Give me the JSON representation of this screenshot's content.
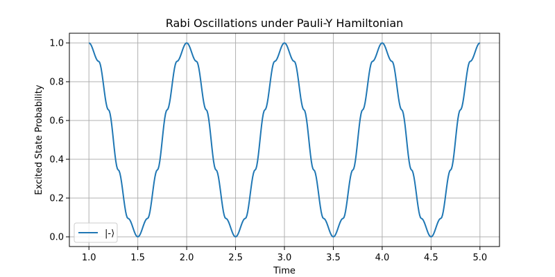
{
  "chart_data": {
    "type": "line",
    "title": "Rabi Oscillations under Pauli-Y Hamiltonian",
    "xlabel": "Time",
    "ylabel": "Excited State Probability",
    "xlim": [
      0.8,
      5.2
    ],
    "ylim": [
      -0.05,
      1.05
    ],
    "xticks": [
      "1.0",
      "1.5",
      "2.0",
      "2.5",
      "3.0",
      "3.5",
      "4.0",
      "4.5",
      "5.0"
    ],
    "yticks": [
      "0.0",
      "0.2",
      "0.4",
      "0.6",
      "0.8",
      "1.0"
    ],
    "grid": true,
    "legend_position": "lower-left",
    "series": [
      {
        "name": "|-⟩",
        "color": "#1f77b4",
        "x": [
          1.0,
          1.1,
          1.2,
          1.3,
          1.4,
          1.5,
          1.6,
          1.7,
          1.8,
          1.9,
          2.0,
          2.1,
          2.2,
          2.3,
          2.4,
          2.5,
          2.6,
          2.7,
          2.8,
          2.9,
          3.0,
          3.1,
          3.2,
          3.3,
          3.4,
          3.5,
          3.6,
          3.7,
          3.8,
          3.9,
          4.0,
          4.1,
          4.2,
          4.3,
          4.4,
          4.5,
          4.6,
          4.7,
          4.8,
          4.9,
          5.0
        ],
        "y": [
          1.0,
          0.905,
          0.655,
          0.345,
          0.095,
          0.0,
          0.095,
          0.345,
          0.655,
          0.905,
          1.0,
          0.905,
          0.655,
          0.345,
          0.095,
          0.0,
          0.095,
          0.345,
          0.655,
          0.905,
          1.0,
          0.905,
          0.655,
          0.345,
          0.095,
          0.0,
          0.095,
          0.345,
          0.655,
          0.905,
          1.0,
          0.905,
          0.655,
          0.345,
          0.095,
          0.0,
          0.095,
          0.345,
          0.655,
          0.905,
          1.0
        ]
      }
    ]
  }
}
